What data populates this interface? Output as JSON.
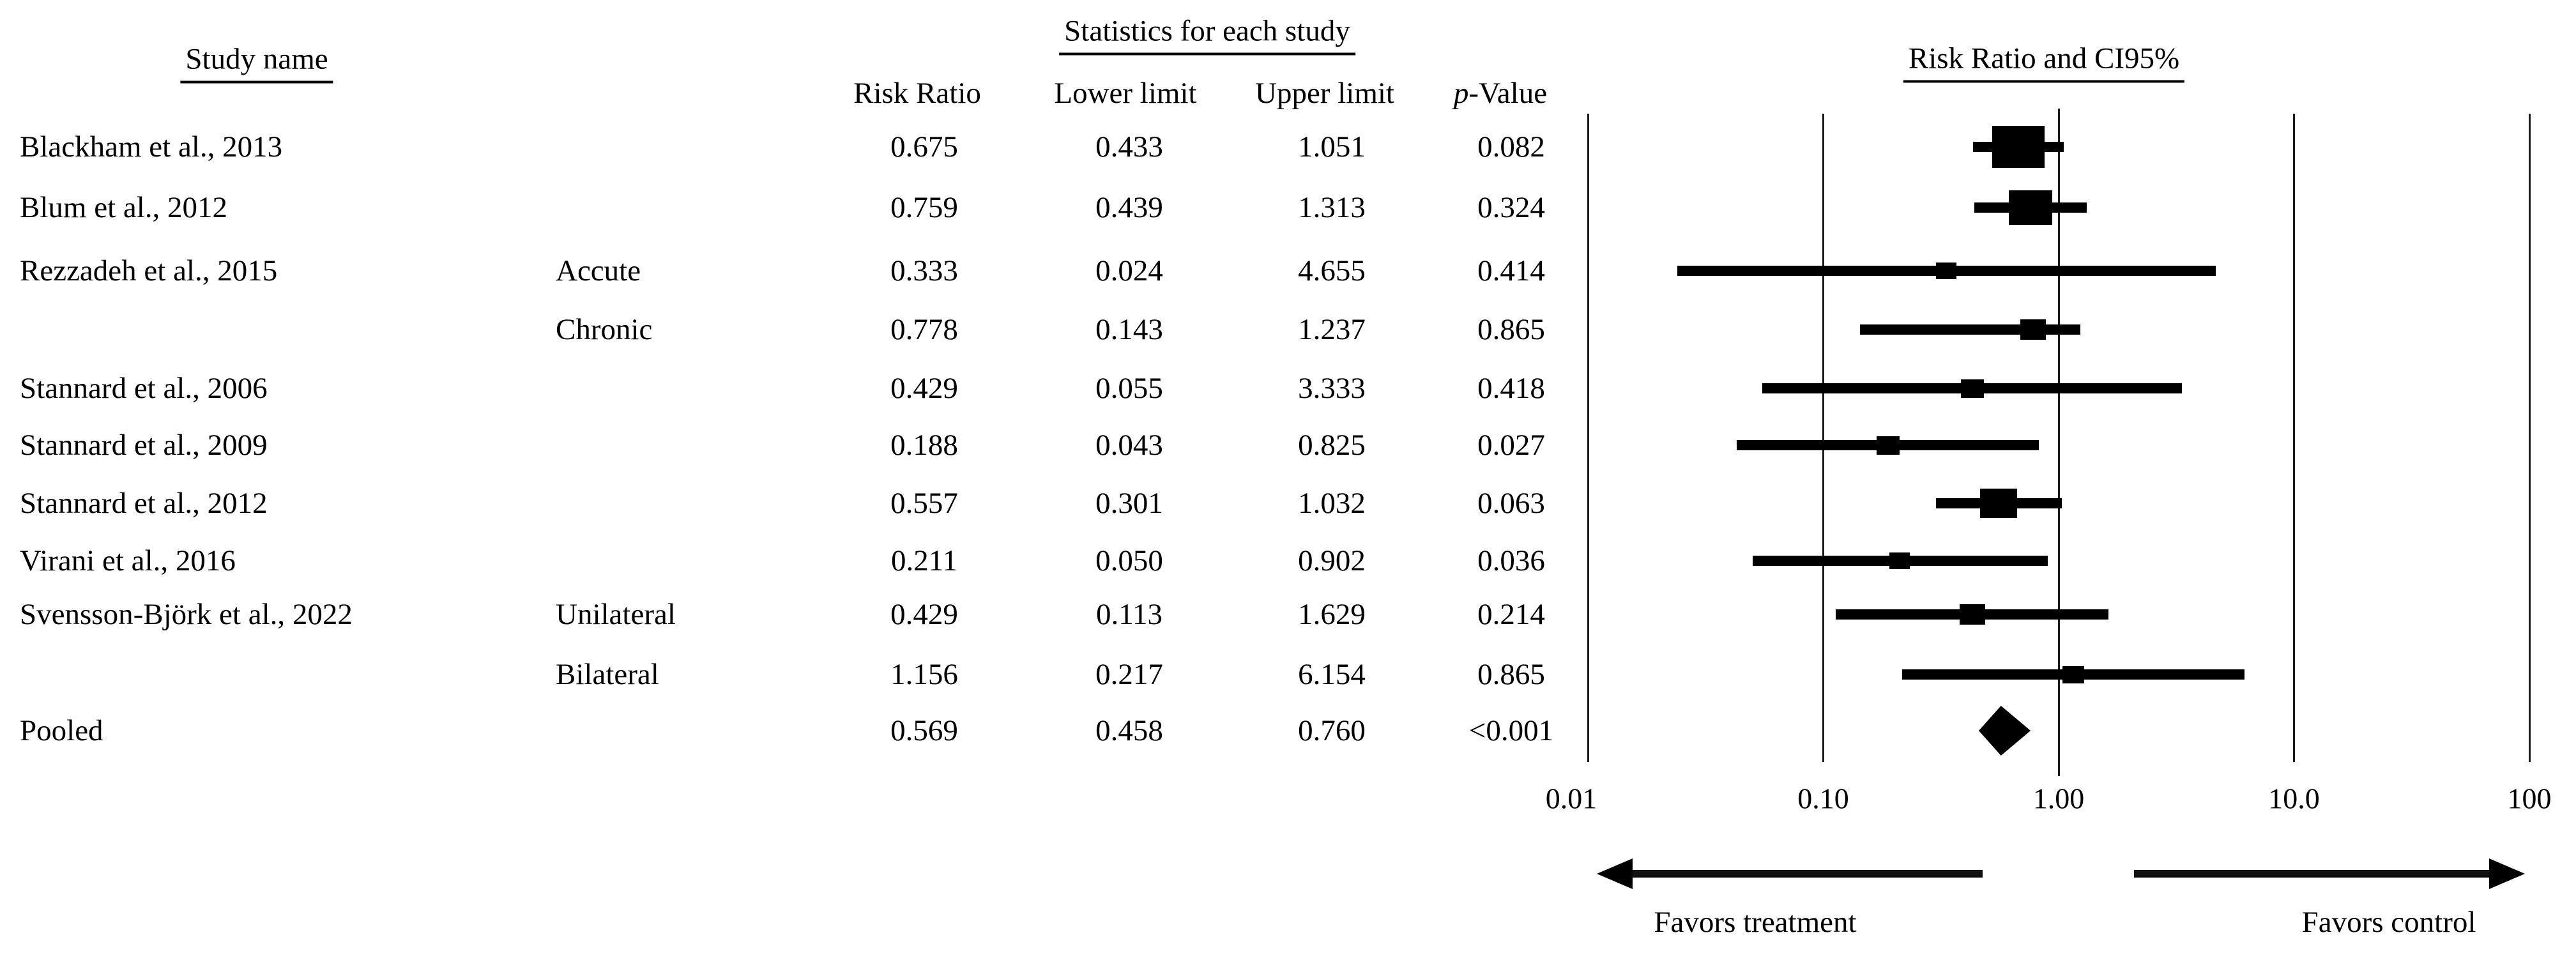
{
  "table": {
    "study_header": "Study name",
    "stats_header": "Statistics for each study",
    "columns": [
      "Risk Ratio",
      "Lower limit",
      "Upper limit",
      "p-Value"
    ]
  },
  "plot": {
    "header": "Risk Ratio and CI95%",
    "favors_left": "Favors treatment",
    "favors_right": "Favors control"
  },
  "chart_data": {
    "type": "forest",
    "x_scale": "log10",
    "xlim": [
      0.01,
      100
    ],
    "axis_ticks": [
      "0.01",
      "0.10",
      "1.00",
      "10.0",
      "100"
    ],
    "axis_values": [
      0.01,
      0.1,
      1,
      10,
      100
    ],
    "grid": "vertical-lines-at-ticks",
    "legend_position": "none",
    "studies": [
      {
        "study": "Blackham et al., 2013",
        "subgroup": "",
        "rr": 0.675,
        "lower": 0.433,
        "upper": 1.051,
        "p": "0.082",
        "rr_text": "0.675",
        "lower_text": "0.433",
        "upper_text": "1.051",
        "marker_size": 82
      },
      {
        "study": "Blum et al., 2012",
        "subgroup": "",
        "rr": 0.759,
        "lower": 0.439,
        "upper": 1.313,
        "p": "0.324",
        "rr_text": "0.759",
        "lower_text": "0.439",
        "upper_text": "1.313",
        "marker_size": 68
      },
      {
        "study": "Rezzadeh et al., 2015",
        "subgroup": "Accute",
        "rr": 0.333,
        "lower": 0.024,
        "upper": 4.655,
        "p": "0.414",
        "rr_text": "0.333",
        "lower_text": "0.024",
        "upper_text": "4.655",
        "marker_size": 32
      },
      {
        "study": "",
        "subgroup": "Chronic",
        "rr": 0.778,
        "lower": 0.143,
        "upper": 1.237,
        "p": "0.865",
        "rr_text": "0.778",
        "lower_text": "0.143",
        "upper_text": "1.237",
        "marker_size": 40
      },
      {
        "study": "Stannard et al., 2006",
        "subgroup": "",
        "rr": 0.429,
        "lower": 0.055,
        "upper": 3.333,
        "p": "0.418",
        "rr_text": "0.429",
        "lower_text": "0.055",
        "upper_text": "3.333",
        "marker_size": 36
      },
      {
        "study": "Stannard et al., 2009",
        "subgroup": "",
        "rr": 0.188,
        "lower": 0.043,
        "upper": 0.825,
        "p": "0.027",
        "rr_text": "0.188",
        "lower_text": "0.043",
        "upper_text": "0.825",
        "marker_size": 36
      },
      {
        "study": "Stannard et al., 2012",
        "subgroup": "",
        "rr": 0.557,
        "lower": 0.301,
        "upper": 1.032,
        "p": "0.063",
        "rr_text": "0.557",
        "lower_text": "0.301",
        "upper_text": "1.032",
        "marker_size": 58
      },
      {
        "study": "Virani et al., 2016",
        "subgroup": "",
        "rr": 0.211,
        "lower": 0.05,
        "upper": 0.902,
        "p": "0.036",
        "rr_text": "0.211",
        "lower_text": "0.050",
        "upper_text": "0.902",
        "marker_size": 32
      },
      {
        "study": "Svensson-Björk et al., 2022",
        "subgroup": "Unilateral",
        "rr": 0.429,
        "lower": 0.113,
        "upper": 1.629,
        "p": "0.214",
        "rr_text": "0.429",
        "lower_text": "0.113",
        "upper_text": "1.629",
        "marker_size": 40
      },
      {
        "study": "",
        "subgroup": "Bilateral",
        "rr": 1.156,
        "lower": 0.217,
        "upper": 6.154,
        "p": "0.865",
        "rr_text": "1.156",
        "lower_text": "0.217",
        "upper_text": "6.154",
        "marker_size": 34
      }
    ],
    "pooled": {
      "study": "Pooled",
      "rr": 0.569,
      "lower": 0.458,
      "upper": 0.76,
      "p": "<0.001",
      "rr_text": "0.569",
      "lower_text": "0.458",
      "upper_text": "0.760",
      "marker": "diamond"
    },
    "annotations": {
      "left_of_null": "Favors treatment",
      "right_of_null": "Favors control"
    },
    "title": "Risk Ratio and CI95%"
  }
}
